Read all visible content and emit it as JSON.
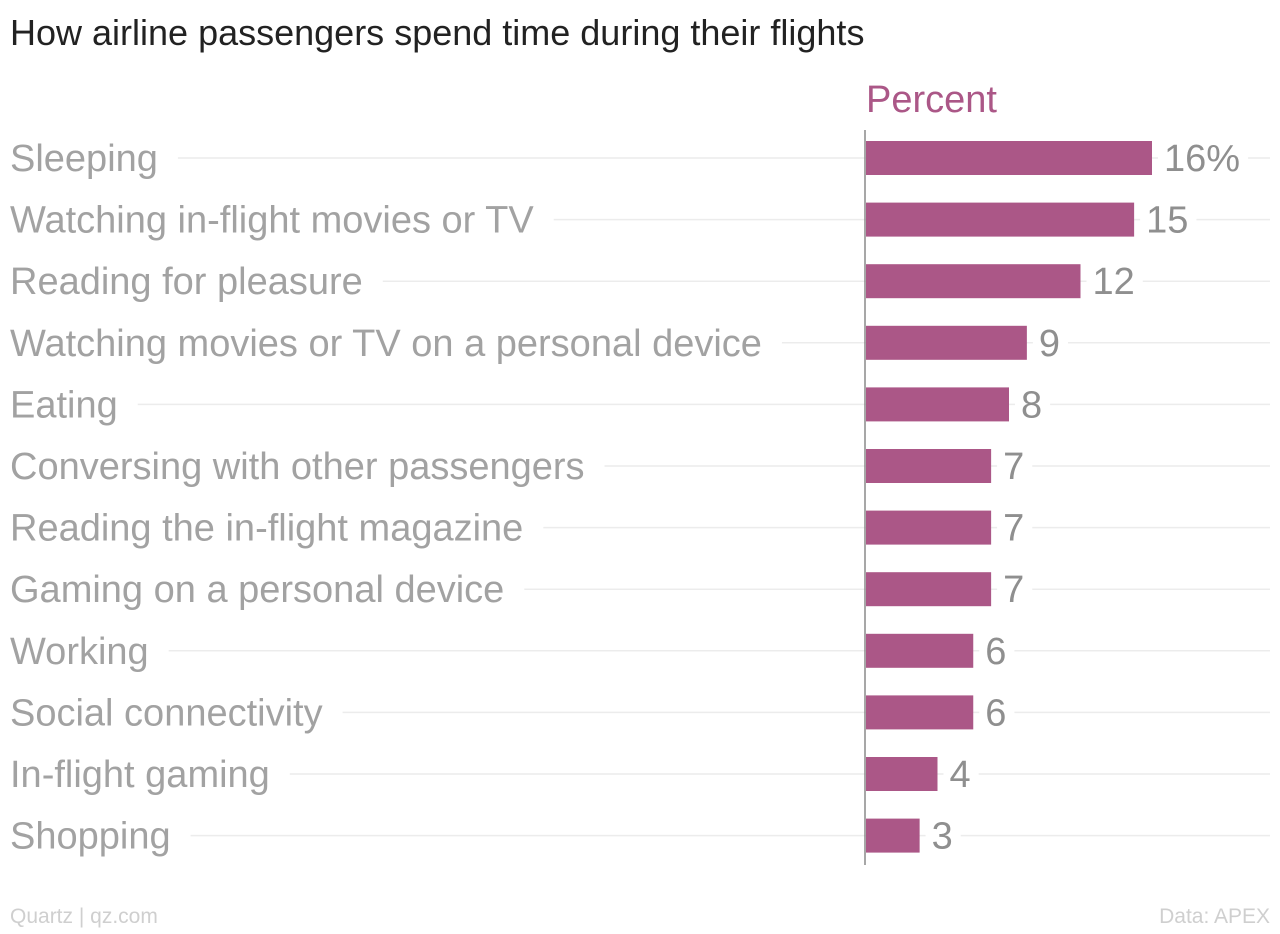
{
  "title": "How airline passengers spend time during their flights",
  "source": "Quartz | qz.com",
  "credit": "Data: APEX",
  "colors": {
    "bar": "#ab5787",
    "label": "#a2a2a2",
    "grid": "#ececec",
    "axis": "#8a8a8a",
    "series_label": "#ab5787"
  },
  "chart_data": {
    "type": "bar",
    "orientation": "horizontal",
    "title": "How airline passengers spend time during their flights",
    "series": [
      {
        "name": "Percent",
        "values": [
          16,
          15,
          12,
          9,
          8,
          7,
          7,
          7,
          6,
          6,
          4,
          3
        ]
      }
    ],
    "categories": [
      "Sleeping",
      "Watching in-flight movies or TV",
      "Reading for pleasure",
      "Watching movies or TV on a personal device",
      "Eating",
      "Conversing with other passengers",
      "Reading the in-flight magazine",
      "Gaming on a personal device",
      "Working",
      "Social connectivity",
      "In-flight gaming",
      "Shopping"
    ],
    "value_labels": [
      "16%",
      "15",
      "12",
      "9",
      "8",
      "7",
      "7",
      "7",
      "6",
      "6",
      "4",
      "3"
    ],
    "xlim": [
      0,
      16
    ],
    "grid": true
  }
}
